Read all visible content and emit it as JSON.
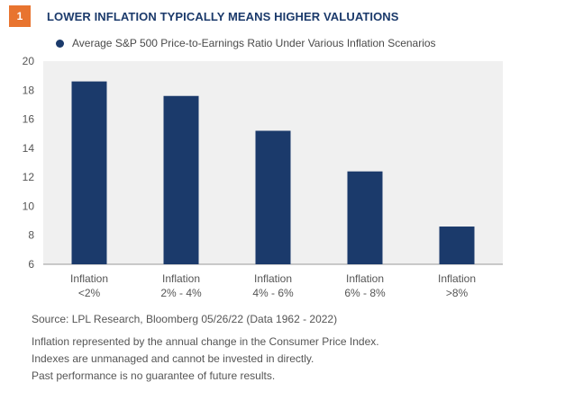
{
  "figure": {
    "badge": "1",
    "title": "LOWER INFLATION TYPICALLY MEANS HIGHER VALUATIONS"
  },
  "chart_data": {
    "type": "bar",
    "legend": "Average S&P 500 Price-to-Earnings Ratio Under Various Inflation Scenarios",
    "categories": [
      [
        "Inflation",
        "<2%"
      ],
      [
        "Inflation",
        "2% - 4%"
      ],
      [
        "Inflation",
        "4% - 6%"
      ],
      [
        "Inflation",
        "6% - 8%"
      ],
      [
        "Inflation",
        ">8%"
      ]
    ],
    "values": [
      18.6,
      17.6,
      15.2,
      12.4,
      8.6
    ],
    "ylim": [
      6,
      20
    ],
    "yticks": [
      6,
      8,
      10,
      12,
      14,
      16,
      18,
      20
    ],
    "legend_position": "top-left",
    "grid": false,
    "colors": {
      "bar": "#1b3a6b",
      "plot_bg": "#f0f0f0",
      "badge": "#e8742f"
    }
  },
  "footnotes": {
    "source": "Source: LPL Research, Bloomberg  05/26/22 (Data 1962 - 2022)",
    "notes": [
      "Inflation represented by the annual change in the Consumer Price Index.",
      "Indexes are unmanaged and cannot be invested in directly.",
      "Past performance is no guarantee of future results."
    ]
  }
}
